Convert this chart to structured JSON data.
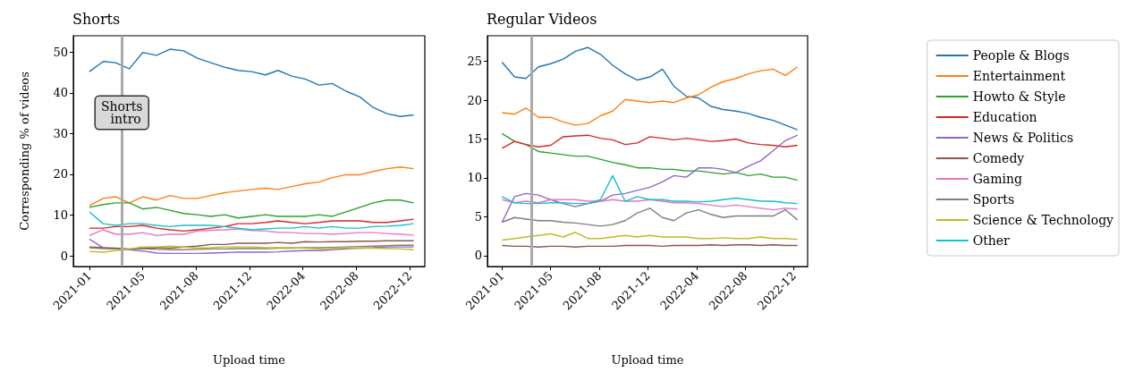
{
  "chart_data": [
    {
      "type": "line",
      "title": "Shorts",
      "xlabel": "Upload time",
      "ylabel": "Corresponding % of videos",
      "x": [
        "2021-01-01",
        "2021-02-01",
        "2021-03-01",
        "2021-04-01",
        "2021-05-01",
        "2021-06-01",
        "2021-07-01",
        "2021-08-01",
        "2021-09-01",
        "2021-10-01",
        "2021-11-01",
        "2021-12-01",
        "2022-01-01",
        "2022-02-01",
        "2022-03-01",
        "2022-04-01",
        "2022-05-01",
        "2022-06-01",
        "2022-07-01",
        "2022-08-01",
        "2022-09-01",
        "2022-10-01",
        "2022-11-01",
        "2022-12-01",
        "2022-12-31"
      ],
      "xlim": [
        "2020-11-26",
        "2023-01-25"
      ],
      "xticks": [
        {
          "value": "2021-01-01",
          "label": "2021-01"
        },
        {
          "value": "2021-05-01",
          "label": "2021-05"
        },
        {
          "value": "2021-08-29",
          "label": "2021-08"
        },
        {
          "value": "2021-12-27",
          "label": "2021-12"
        },
        {
          "value": "2022-04-26",
          "label": "2022-04"
        },
        {
          "value": "2022-08-24",
          "label": "2022-08"
        },
        {
          "value": "2022-12-22",
          "label": "2022-12"
        }
      ],
      "ylim": [
        -2.6,
        54
      ],
      "yticks": [
        0,
        10,
        20,
        30,
        40,
        50
      ],
      "grid": false,
      "marker": "none",
      "line_style": "solid",
      "legend": "right",
      "ref_lines": [
        {
          "axis": "x",
          "value": "2021-03-15",
          "label": "Shorts intro",
          "color": "#aaaaaa"
        }
      ],
      "series": [
        {
          "name": "People & Blogs",
          "color": "#1f77b4",
          "values": [
            45.2,
            47.7,
            47.4,
            45.9,
            49.9,
            49.2,
            50.7,
            50.3,
            48.5,
            47.4,
            46.3,
            45.5,
            45.2,
            44.4,
            45.5,
            44.1,
            43.4,
            41.9,
            42.3,
            40.4,
            39.0,
            36.4,
            34.9,
            34.2,
            34.6
          ]
        },
        {
          "name": "Entertainment",
          "color": "#ff7f0e",
          "values": [
            12.3,
            14.1,
            14.5,
            13.0,
            14.5,
            13.7,
            14.8,
            14.1,
            14.1,
            14.8,
            15.5,
            15.9,
            16.3,
            16.6,
            16.3,
            17.0,
            17.7,
            18.1,
            19.2,
            19.9,
            19.9,
            20.7,
            21.4,
            21.8,
            21.4
          ]
        },
        {
          "name": "Howto & Style",
          "color": "#2ca02c",
          "values": [
            11.9,
            12.6,
            13.0,
            13.0,
            11.5,
            11.9,
            11.2,
            10.4,
            10.1,
            9.7,
            10.1,
            9.3,
            9.7,
            10.1,
            9.7,
            9.7,
            9.7,
            10.1,
            9.7,
            10.8,
            11.9,
            13.0,
            13.7,
            13.7,
            13.0
          ]
        },
        {
          "name": "Education",
          "color": "#d62728",
          "values": [
            6.8,
            6.8,
            7.2,
            7.2,
            7.5,
            6.8,
            6.4,
            6.1,
            6.4,
            6.8,
            7.2,
            7.9,
            7.9,
            8.2,
            8.6,
            8.2,
            7.9,
            8.2,
            8.6,
            8.6,
            8.6,
            8.2,
            8.2,
            8.6,
            9.0
          ]
        },
        {
          "name": "News & Politics",
          "color": "#9467bd",
          "values": [
            4.1,
            2.0,
            1.7,
            1.5,
            1.2,
            0.7,
            0.6,
            0.6,
            0.6,
            0.7,
            0.8,
            0.9,
            0.9,
            0.9,
            1.0,
            1.2,
            1.3,
            1.3,
            1.5,
            1.7,
            1.9,
            2.0,
            2.2,
            2.2,
            2.2
          ]
        },
        {
          "name": "Comedy",
          "color": "#8c564b",
          "values": [
            2.2,
            2.0,
            1.9,
            1.7,
            1.9,
            2.0,
            1.9,
            2.2,
            2.4,
            2.8,
            2.8,
            3.1,
            3.1,
            3.1,
            3.3,
            3.1,
            3.5,
            3.4,
            3.5,
            3.5,
            3.6,
            3.6,
            3.7,
            3.7,
            3.7
          ]
        },
        {
          "name": "Gaming",
          "color": "#e377c2",
          "values": [
            5.0,
            6.4,
            5.3,
            5.3,
            5.7,
            5.0,
            5.3,
            5.3,
            6.1,
            6.3,
            6.4,
            6.6,
            6.2,
            6.1,
            5.8,
            5.7,
            5.5,
            5.5,
            5.3,
            5.5,
            5.7,
            5.7,
            5.5,
            5.3,
            5.1
          ]
        },
        {
          "name": "Sports",
          "color": "#7f7f7f",
          "values": [
            2.0,
            1.8,
            1.7,
            1.6,
            1.8,
            1.6,
            1.5,
            1.5,
            1.6,
            1.7,
            1.7,
            1.8,
            1.8,
            1.8,
            1.9,
            1.9,
            2.0,
            2.0,
            2.1,
            2.2,
            2.3,
            2.4,
            2.5,
            2.6,
            2.6
          ]
        },
        {
          "name": "Science & Technology",
          "color": "#bcbd22",
          "values": [
            1.1,
            0.9,
            1.3,
            1.7,
            2.2,
            2.2,
            2.4,
            2.2,
            1.9,
            2.0,
            2.2,
            2.2,
            2.2,
            2.0,
            2.0,
            2.0,
            1.9,
            1.7,
            1.9,
            2.0,
            1.9,
            1.9,
            1.8,
            1.7,
            1.5
          ]
        },
        {
          "name": "Other",
          "color": "#17becf",
          "values": [
            10.8,
            7.9,
            7.5,
            7.9,
            7.9,
            7.5,
            7.2,
            7.5,
            7.5,
            7.5,
            7.2,
            6.8,
            6.4,
            6.6,
            6.8,
            6.8,
            7.2,
            6.8,
            7.2,
            6.8,
            6.8,
            7.2,
            7.3,
            7.5,
            7.9
          ]
        }
      ]
    },
    {
      "type": "line",
      "title": "Regular Videos",
      "xlabel": "Upload time",
      "x": [
        "2021-01-01",
        "2021-02-01",
        "2021-03-01",
        "2021-04-01",
        "2021-05-01",
        "2021-06-01",
        "2021-07-01",
        "2021-08-01",
        "2021-09-01",
        "2021-10-01",
        "2021-11-01",
        "2021-12-01",
        "2022-01-01",
        "2022-02-01",
        "2022-03-01",
        "2022-04-01",
        "2022-05-01",
        "2022-06-01",
        "2022-07-01",
        "2022-08-01",
        "2022-09-01",
        "2022-10-01",
        "2022-11-01",
        "2022-12-01",
        "2022-12-31"
      ],
      "xlim": [
        "2020-11-26",
        "2023-01-25"
      ],
      "xticks": [
        {
          "value": "2021-01-01",
          "label": "2021-01"
        },
        {
          "value": "2021-05-01",
          "label": "2021-05"
        },
        {
          "value": "2021-08-29",
          "label": "2021-08"
        },
        {
          "value": "2021-12-27",
          "label": "2021-12"
        },
        {
          "value": "2022-04-26",
          "label": "2022-04"
        },
        {
          "value": "2022-08-24",
          "label": "2022-08"
        },
        {
          "value": "2022-12-22",
          "label": "2022-12"
        }
      ],
      "ylim": [
        -1.4,
        28.3
      ],
      "yticks": [
        0,
        5,
        10,
        15,
        20,
        25
      ],
      "grid": false,
      "marker": "none",
      "line_style": "solid",
      "legend": "right",
      "ref_lines": [
        {
          "axis": "x",
          "value": "2021-03-15",
          "color": "#aaaaaa"
        }
      ],
      "series": [
        {
          "name": "People & Blogs",
          "color": "#1f77b4",
          "values": [
            24.9,
            23.0,
            22.8,
            24.3,
            24.7,
            25.3,
            26.3,
            26.8,
            25.9,
            24.5,
            23.4,
            22.6,
            23.0,
            24.0,
            21.8,
            20.5,
            20.3,
            19.2,
            18.8,
            18.6,
            18.3,
            17.8,
            17.4,
            16.8,
            16.2
          ]
        },
        {
          "name": "Entertainment",
          "color": "#ff7f0e",
          "values": [
            18.4,
            18.2,
            19.0,
            17.8,
            17.8,
            17.2,
            16.8,
            17.0,
            18.0,
            18.6,
            20.1,
            19.9,
            19.7,
            19.9,
            19.7,
            20.3,
            20.7,
            21.7,
            22.4,
            22.8,
            23.4,
            23.8,
            24.0,
            23.2,
            24.3
          ]
        },
        {
          "name": "Howto & Style",
          "color": "#2ca02c",
          "values": [
            15.7,
            14.7,
            14.3,
            13.4,
            13.2,
            13.0,
            12.8,
            12.8,
            12.4,
            12.0,
            11.7,
            11.3,
            11.3,
            11.1,
            11.1,
            10.9,
            10.9,
            10.7,
            10.5,
            10.7,
            10.3,
            10.5,
            10.1,
            10.1,
            9.7
          ]
        },
        {
          "name": "Education",
          "color": "#d62728",
          "values": [
            13.8,
            14.7,
            14.3,
            14.0,
            14.2,
            15.3,
            15.4,
            15.5,
            15.1,
            14.9,
            14.3,
            14.5,
            15.3,
            15.1,
            14.9,
            15.1,
            14.9,
            14.7,
            14.8,
            15.0,
            14.5,
            14.3,
            14.2,
            14.0,
            14.2
          ]
        },
        {
          "name": "News & Politics",
          "color": "#9467bd",
          "values": [
            4.3,
            7.6,
            8.0,
            7.8,
            7.2,
            6.7,
            6.3,
            6.7,
            7.0,
            7.8,
            8.0,
            8.4,
            8.8,
            9.5,
            10.3,
            10.1,
            11.3,
            11.3,
            11.1,
            10.7,
            11.5,
            12.2,
            13.5,
            14.8,
            15.5
          ]
        },
        {
          "name": "Comedy",
          "color": "#8c564b",
          "values": [
            1.3,
            1.2,
            1.2,
            1.1,
            1.2,
            1.2,
            1.1,
            1.2,
            1.2,
            1.2,
            1.3,
            1.3,
            1.3,
            1.2,
            1.3,
            1.3,
            1.3,
            1.4,
            1.3,
            1.4,
            1.4,
            1.3,
            1.4,
            1.3,
            1.3
          ]
        },
        {
          "name": "Gaming",
          "color": "#e377c2",
          "values": [
            7.2,
            6.8,
            7.0,
            6.8,
            7.2,
            7.2,
            7.2,
            7.0,
            7.0,
            7.2,
            7.0,
            7.0,
            7.2,
            7.0,
            6.8,
            6.8,
            6.7,
            6.5,
            6.3,
            6.5,
            6.3,
            6.1,
            5.9,
            6.1,
            6.0
          ]
        },
        {
          "name": "Sports",
          "color": "#7f7f7f",
          "values": [
            4.3,
            4.9,
            4.7,
            4.5,
            4.5,
            4.3,
            4.2,
            4.0,
            3.8,
            4.0,
            4.5,
            5.5,
            6.1,
            4.9,
            4.5,
            5.5,
            5.9,
            5.3,
            4.9,
            5.1,
            5.1,
            5.1,
            5.1,
            5.9,
            4.6
          ]
        },
        {
          "name": "Science & Technology",
          "color": "#bcbd22",
          "values": [
            2.0,
            2.2,
            2.4,
            2.6,
            2.8,
            2.4,
            3.0,
            2.2,
            2.2,
            2.4,
            2.6,
            2.4,
            2.6,
            2.4,
            2.4,
            2.4,
            2.2,
            2.2,
            2.3,
            2.2,
            2.2,
            2.4,
            2.2,
            2.2,
            2.1
          ]
        },
        {
          "name": "Other",
          "color": "#17becf",
          "values": [
            7.6,
            6.8,
            6.7,
            6.7,
            6.8,
            6.8,
            6.7,
            6.7,
            7.2,
            10.3,
            7.0,
            7.6,
            7.2,
            7.2,
            7.0,
            7.0,
            6.9,
            7.0,
            7.2,
            7.4,
            7.2,
            7.0,
            7.0,
            6.8,
            6.7
          ]
        }
      ]
    }
  ]
}
